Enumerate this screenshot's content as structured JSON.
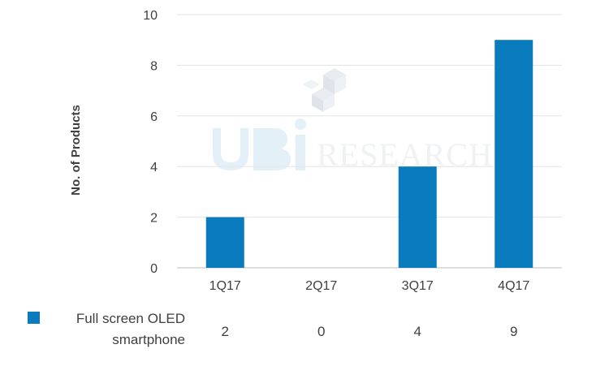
{
  "chart_data": {
    "type": "bar",
    "categories": [
      "1Q17",
      "2Q17",
      "3Q17",
      "4Q17"
    ],
    "series": [
      {
        "name": "Full screen OLED smartphone",
        "values": [
          2,
          0,
          4,
          9
        ],
        "color": "#0a7bbd"
      }
    ],
    "ylabel": "No. of Products",
    "ylim": [
      0,
      10
    ],
    "yticks": [
      0,
      2,
      4,
      6,
      8,
      10
    ],
    "grid": true,
    "legend": "data table below chart",
    "table": {
      "legend_label_lines": [
        "Full screen OLED",
        "smartphone"
      ],
      "values": [
        "2",
        "0",
        "4",
        "9"
      ]
    }
  },
  "watermark": {
    "text": "RESEARCH",
    "logo": "UBi RESEARCH logo"
  }
}
